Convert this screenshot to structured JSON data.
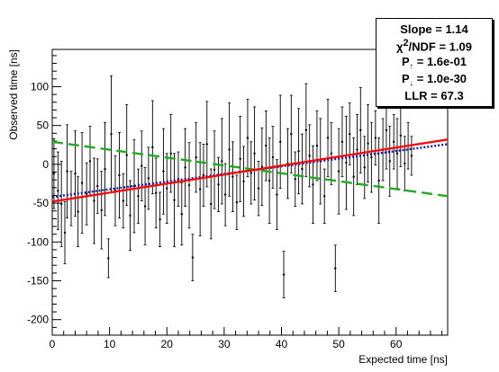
{
  "chart_data": {
    "type": "scatter",
    "title": "",
    "xlabel": "Expected time [ns]",
    "ylabel": "Observed time [ns]",
    "xlim": [
      0,
      69
    ],
    "ylim": [
      -220,
      148
    ],
    "x_ticks": [
      0,
      10,
      20,
      30,
      40,
      50,
      60
    ],
    "y_ticks": [
      -200,
      -150,
      -100,
      -50,
      0,
      50,
      100
    ],
    "grid": false,
    "series": [
      {
        "kind": "points-with-errors",
        "color": "#000000",
        "points": [
          {
            "x": 0.3,
            "y": -12,
            "err": 45
          },
          {
            "x": 1.0,
            "y": -34,
            "err": 50
          },
          {
            "x": 1.6,
            "y": -51,
            "err": 55
          },
          {
            "x": 2.2,
            "y": -88,
            "err": 40
          },
          {
            "x": 2.6,
            "y": -9,
            "err": 60
          },
          {
            "x": 3.3,
            "y": -44,
            "err": 35
          },
          {
            "x": 4.0,
            "y": -12,
            "err": 55
          },
          {
            "x": 4.5,
            "y": -61,
            "err": 45
          },
          {
            "x": 5.2,
            "y": -24,
            "err": 65
          },
          {
            "x": 6.0,
            "y": -38,
            "err": 40
          },
          {
            "x": 6.6,
            "y": 4,
            "err": 45
          },
          {
            "x": 7.3,
            "y": -47,
            "err": 55
          },
          {
            "x": 7.9,
            "y": -28,
            "err": 35
          },
          {
            "x": 8.6,
            "y": -59,
            "err": 50
          },
          {
            "x": 9.2,
            "y": -6,
            "err": 60
          },
          {
            "x": 9.8,
            "y": -121,
            "err": 25
          },
          {
            "x": 10.3,
            "y": 39,
            "err": 75
          },
          {
            "x": 11.0,
            "y": -34,
            "err": 45
          },
          {
            "x": 11.7,
            "y": -14,
            "err": 55
          },
          {
            "x": 12.4,
            "y": -47,
            "err": 35
          },
          {
            "x": 13.0,
            "y": 12,
            "err": 65
          },
          {
            "x": 13.6,
            "y": -66,
            "err": 45
          },
          {
            "x": 14.3,
            "y": -28,
            "err": 60
          },
          {
            "x": 15.0,
            "y": -41,
            "err": 35
          },
          {
            "x": 15.6,
            "y": -2,
            "err": 45
          },
          {
            "x": 16.2,
            "y": -54,
            "err": 50
          },
          {
            "x": 16.8,
            "y": -18,
            "err": 40
          },
          {
            "x": 17.5,
            "y": 22,
            "err": 60
          },
          {
            "x": 18.1,
            "y": -37,
            "err": 45
          },
          {
            "x": 18.8,
            "y": -71,
            "err": 35
          },
          {
            "x": 19.4,
            "y": -9,
            "err": 55
          },
          {
            "x": 20.0,
            "y": -31,
            "err": 45
          },
          {
            "x": 20.7,
            "y": 14,
            "err": 50
          },
          {
            "x": 21.3,
            "y": -46,
            "err": 60
          },
          {
            "x": 22.0,
            "y": -19,
            "err": 35
          },
          {
            "x": 22.6,
            "y": -64,
            "err": 40
          },
          {
            "x": 23.2,
            "y": -4,
            "err": 50
          },
          {
            "x": 23.9,
            "y": -27,
            "err": 55
          },
          {
            "x": 24.5,
            "y": -120,
            "err": 30
          },
          {
            "x": 25.1,
            "y": 9,
            "err": 45
          },
          {
            "x": 25.8,
            "y": -32,
            "err": 60
          },
          {
            "x": 26.4,
            "y": -14,
            "err": 40
          },
          {
            "x": 27.0,
            "y": 26,
            "err": 55
          },
          {
            "x": 27.7,
            "y": -51,
            "err": 45
          },
          {
            "x": 28.3,
            "y": -7,
            "err": 50
          },
          {
            "x": 29.0,
            "y": -26,
            "err": 35
          },
          {
            "x": 29.6,
            "y": 4,
            "err": 55
          },
          {
            "x": 30.2,
            "y": -39,
            "err": 40
          },
          {
            "x": 30.9,
            "y": 19,
            "err": 60
          },
          {
            "x": 31.5,
            "y": -16,
            "err": 45
          },
          {
            "x": 32.2,
            "y": -49,
            "err": 35
          },
          {
            "x": 32.8,
            "y": 7,
            "err": 55
          },
          {
            "x": 33.4,
            "y": -22,
            "err": 45
          },
          {
            "x": 34.1,
            "y": 34,
            "err": 50
          },
          {
            "x": 34.7,
            "y": -11,
            "err": 40
          },
          {
            "x": 35.3,
            "y": 14,
            "err": 60
          },
          {
            "x": 36.0,
            "y": -31,
            "err": 35
          },
          {
            "x": 36.6,
            "y": -3,
            "err": 50
          },
          {
            "x": 37.3,
            "y": 24,
            "err": 45
          },
          {
            "x": 37.9,
            "y": -21,
            "err": 55
          },
          {
            "x": 38.5,
            "y": 9,
            "err": 40
          },
          {
            "x": 39.2,
            "y": -39,
            "err": 45
          },
          {
            "x": 39.8,
            "y": 29,
            "err": 60
          },
          {
            "x": 40.4,
            "y": -142,
            "err": 30
          },
          {
            "x": 41.1,
            "y": 1,
            "err": 45
          },
          {
            "x": 41.7,
            "y": 39,
            "err": 50
          },
          {
            "x": 42.4,
            "y": -19,
            "err": 35
          },
          {
            "x": 43.0,
            "y": 17,
            "err": 55
          },
          {
            "x": 43.6,
            "y": -6,
            "err": 45
          },
          {
            "x": 44.3,
            "y": 44,
            "err": 60
          },
          {
            "x": 44.9,
            "y": 11,
            "err": 40
          },
          {
            "x": 45.5,
            "y": -26,
            "err": 50
          },
          {
            "x": 46.2,
            "y": 24,
            "err": 45
          },
          {
            "x": 46.8,
            "y": 4,
            "err": 55
          },
          {
            "x": 47.5,
            "y": -41,
            "err": 35
          },
          {
            "x": 48.1,
            "y": 34,
            "err": 50
          },
          {
            "x": 48.7,
            "y": 14,
            "err": 40
          },
          {
            "x": 49.4,
            "y": -134,
            "err": 30
          },
          {
            "x": 50.0,
            "y": -9,
            "err": 55
          },
          {
            "x": 50.6,
            "y": 29,
            "err": 45
          },
          {
            "x": 51.3,
            "y": 2,
            "err": 60
          },
          {
            "x": 51.9,
            "y": 39,
            "err": 40
          },
          {
            "x": 52.6,
            "y": -16,
            "err": 50
          },
          {
            "x": 53.2,
            "y": 19,
            "err": 45
          },
          {
            "x": 53.8,
            "y": 44,
            "err": 55
          },
          {
            "x": 54.5,
            "y": -4,
            "err": 40
          },
          {
            "x": 55.1,
            "y": 27,
            "err": 50
          },
          {
            "x": 55.7,
            "y": 9,
            "err": 45
          },
          {
            "x": 56.4,
            "y": 34,
            "err": 35
          },
          {
            "x": 57.0,
            "y": -21,
            "err": 55
          },
          {
            "x": 57.7,
            "y": 19,
            "err": 40
          },
          {
            "x": 58.3,
            "y": 44,
            "err": 50
          },
          {
            "x": 58.9,
            "y": 4,
            "err": 45
          },
          {
            "x": 59.6,
            "y": 29,
            "err": 35
          },
          {
            "x": 60.2,
            "y": 14,
            "err": 45
          },
          {
            "x": 60.8,
            "y": 37,
            "err": 40
          },
          {
            "x": 61.5,
            "y": 1,
            "err": 35
          },
          {
            "x": 62.1,
            "y": 24,
            "err": 30
          },
          {
            "x": 62.7,
            "y": 11,
            "err": 25
          }
        ]
      }
    ],
    "lines": [
      {
        "kind": "fit",
        "color": "#ff0000",
        "style": "solid",
        "x": [
          0,
          69
        ],
        "y": [
          -48,
          32
        ]
      },
      {
        "kind": "fit",
        "color": "#1a1a99",
        "style": "dotted",
        "x": [
          0,
          69
        ],
        "y": [
          -42,
          26
        ]
      },
      {
        "kind": "fit",
        "color": "#22aa22",
        "style": "dashed",
        "x": [
          0,
          69
        ],
        "y": [
          29,
          -41
        ]
      }
    ]
  },
  "stats": {
    "slope": "Slope = 1.14",
    "chi2_prefix": "χ",
    "chi2_sup": "2",
    "chi2_suffix": "/NDF = 1.09",
    "p_up_prefix": "P",
    "p_up_sub": "↑",
    "p_up_suffix": " = 1.6e-01",
    "p_down_prefix": "P",
    "p_down_sub": "↓",
    "p_down_suffix": " = 1.0e-30",
    "llr": "LLR =  67.3"
  }
}
